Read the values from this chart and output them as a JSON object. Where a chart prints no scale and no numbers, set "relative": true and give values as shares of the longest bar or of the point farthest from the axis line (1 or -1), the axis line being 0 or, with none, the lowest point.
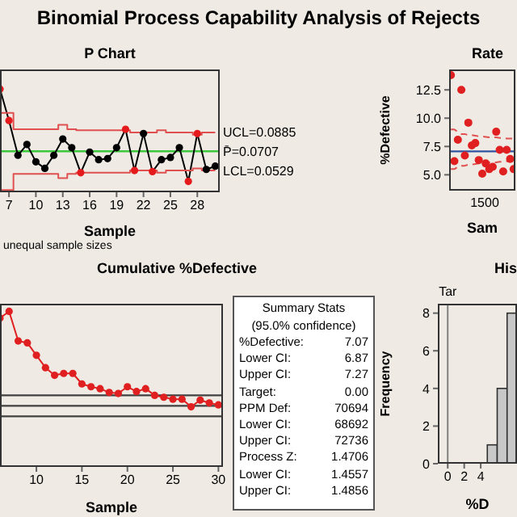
{
  "chart_data": [
    {
      "type": "line",
      "title": "P Chart",
      "xlabel": "Sample",
      "annotations": [
        "Binomial Process Capability Analysis of Rejects",
        "unequal sample sizes"
      ],
      "x": [
        6,
        7,
        8,
        9,
        10,
        11,
        12,
        13,
        14,
        15,
        16,
        17,
        18,
        19,
        20,
        21,
        22,
        23,
        24,
        25,
        26,
        27,
        28,
        29,
        30
      ],
      "xlim": [
        6,
        30.5
      ],
      "xticks": [
        7,
        10,
        13,
        16,
        19,
        22,
        25,
        28
      ],
      "ylim": [
        0.033,
        0.146
      ],
      "yticks": [
        {
          "value": 0.0885,
          "label": "UCL=0.0885"
        },
        {
          "value": 0.0707,
          "label": "P̄=0.0707"
        },
        {
          "value": 0.0529,
          "label": "LCL=0.0529"
        }
      ],
      "ref_lines": [
        {
          "axis": "y",
          "value": 0.0707,
          "color": "#3cc83c"
        }
      ],
      "marker": "circle",
      "series": [
        {
          "type": "line",
          "color": "#000000",
          "values": [
            0.128,
            0.099,
            0.067,
            0.077,
            0.061,
            0.055,
            0.067,
            0.082,
            0.074,
            0.051,
            0.07,
            0.063,
            0.064,
            0.074,
            0.091,
            0.053,
            0.087,
            0.052,
            0.063,
            0.065,
            0.074,
            0.043,
            0.087,
            0.054,
            0.057
          ],
          "colors": [
            "#e41a1c",
            "#e41a1c",
            "#000000",
            "#000000",
            "#000000",
            "#000000",
            "#000000",
            "#000000",
            "#000000",
            "#e41a1c",
            "#000000",
            "#000000",
            "#000000",
            "#000000",
            "#e41a1c",
            "#e41a1c",
            "#000000",
            "#e41a1c",
            "#000000",
            "#000000",
            "#000000",
            "#e41a1c",
            "#e41a1c",
            "#000000",
            "#000000"
          ]
        },
        {
          "type": "step",
          "color": "#e05050",
          "marker": "none",
          "values": [
            0.106,
            0.106,
            0.091,
            0.091,
            0.091,
            0.091,
            0.091,
            0.095,
            0.091,
            0.09,
            0.09,
            0.09,
            0.09,
            0.09,
            0.09,
            0.088,
            0.088,
            0.088,
            0.09,
            0.088,
            0.088,
            0.088,
            0.086,
            0.088,
            0.088
          ]
        },
        {
          "type": "step",
          "color": "#e05050",
          "marker": "none",
          "values": [
            0.035,
            0.035,
            0.05,
            0.05,
            0.05,
            0.05,
            0.05,
            0.046,
            0.05,
            0.051,
            0.051,
            0.051,
            0.051,
            0.051,
            0.051,
            0.053,
            0.053,
            0.053,
            0.051,
            0.053,
            0.053,
            0.053,
            0.055,
            0.053,
            0.053
          ]
        }
      ]
    },
    {
      "type": "scatter",
      "title": "Rate",
      "xlabel": "Sam",
      "ylabel": "%Defective",
      "annotations": [
        "1500"
      ],
      "categories": [
        null,
        null,
        null,
        null,
        null,
        null,
        null,
        null,
        null,
        null,
        null,
        null,
        null,
        null,
        null,
        null,
        null,
        null,
        null
      ],
      "ylim": [
        3.6,
        14.3
      ],
      "yticks": [
        {
          "value": 5,
          "label": "5.0"
        },
        7.5,
        {
          "value": 10,
          "label": "10.0"
        },
        12.5
      ],
      "ref_lines": [
        {
          "axis": "y",
          "value": 7.07,
          "color": "#3050a0"
        }
      ],
      "marker": "circle",
      "series": [
        {
          "type": "scatter",
          "color": "#e02020",
          "values": [
            13.8,
            6.2,
            8.1,
            12.5,
            6.7,
            9.6,
            7.6,
            7.8,
            6.3,
            5.1,
            6.0,
            5.5,
            5.7,
            8.8,
            7.2,
            5.3,
            7.2,
            6.4,
            5.5
          ]
        },
        {
          "type": "line",
          "color": "#e05050",
          "line_style": "dashed",
          "marker": "none",
          "values": [
            9.0,
            9.0,
            8.8,
            8.6,
            8.6,
            8.5,
            8.5,
            8.45,
            8.4,
            8.4,
            8.35,
            8.3,
            8.3,
            8.3,
            8.25,
            8.25,
            8.2,
            8.2,
            8.2
          ]
        },
        {
          "type": "line",
          "color": "#e05050",
          "line_style": "dashed",
          "marker": "none",
          "values": [
            5.5,
            5.5,
            5.7,
            5.8,
            5.8,
            5.9,
            5.9,
            5.95,
            6.0,
            6.0,
            6.05,
            6.1,
            6.1,
            6.1,
            6.15,
            6.15,
            6.2,
            6.2,
            6.2
          ]
        }
      ]
    },
    {
      "type": "line",
      "title": "Cumulative %Defective",
      "xlabel": "Sample",
      "relative": true,
      "tick_labels": "x",
      "x": [
        6,
        7,
        8,
        9,
        10,
        11,
        12,
        13,
        14,
        15,
        16,
        17,
        18,
        19,
        20,
        21,
        22,
        23,
        24,
        25,
        26,
        27,
        28,
        29,
        30
      ],
      "xlim": [
        6,
        30.5
      ],
      "xticks": [
        10,
        15,
        20,
        25,
        30
      ],
      "ref_lines": [
        {
          "axis": "y",
          "value": 0.12,
          "color": "#404040"
        },
        {
          "axis": "y",
          "value": 0.01,
          "color": "#404040"
        },
        {
          "axis": "y",
          "value": -0.1,
          "color": "#404040"
        }
      ],
      "marker": "circle",
      "series": [
        {
          "type": "line",
          "color": "#e02020",
          "values": [
            0.93,
            1,
            0.69,
            0.67,
            0.54,
            0.41,
            0.33,
            0.35,
            0.35,
            0.24,
            0.21,
            0.19,
            0.15,
            0.14,
            0.21,
            0.16,
            0.19,
            0.12,
            0.1,
            0.08,
            0.08,
            0,
            0.07,
            0.04,
            0.02
          ]
        }
      ]
    },
    {
      "type": "other",
      "title": "Summary Stats",
      "subtitle": "(95.0% confidence)",
      "annotations": [
        "%Defective:",
        "7.07",
        "Lower CI:",
        "6.87",
        "Upper CI:",
        "7.27",
        "Target:",
        "0.00",
        "PPM Def:",
        "70694",
        "Lower CI:",
        "68692",
        "Upper CI:",
        "72736",
        "Process Z:",
        "1.4706",
        "Lower CI:",
        "1.4557",
        "Upper CI:",
        "1.4856"
      ]
    },
    {
      "type": "histogram",
      "title": "His",
      "xlabel": "%D",
      "ylabel": "Frequency",
      "color": "#c8c8c8",
      "bins": [
        4.8,
        6.0,
        7.2,
        8.4
      ],
      "values": [
        1,
        4,
        8
      ],
      "xlim": [
        -1.2,
        8.4
      ],
      "xticks": [
        0,
        2,
        4
      ],
      "ylim": [
        0,
        8.5
      ],
      "yticks": [
        0,
        2,
        4,
        6,
        8
      ],
      "ref_lines": [
        {
          "axis": "x",
          "value": 0,
          "label": "Tar",
          "color": "#808080"
        }
      ]
    }
  ]
}
